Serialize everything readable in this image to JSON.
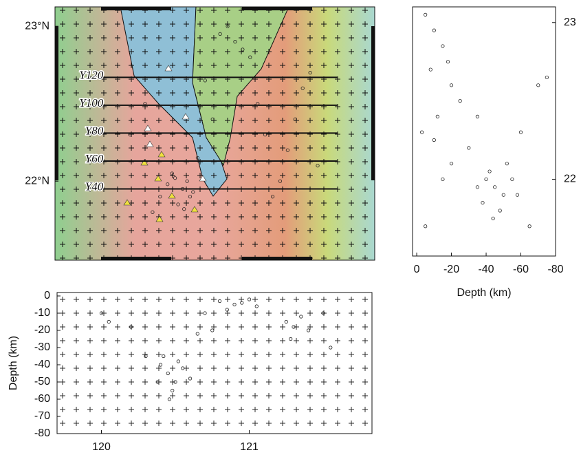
{
  "chart_data": [
    {
      "type": "map",
      "xlim": [
        119.7,
        121.83
      ],
      "ylim": [
        21.49,
        23.125
      ],
      "yticks": [
        {
          "value": 23,
          "label": "23°N"
        },
        {
          "value": 22,
          "label": "22°N"
        }
      ],
      "profiles": [
        {
          "label": "Y120",
          "lat": 22.67
        },
        {
          "label": "Y100",
          "lat": 22.49
        },
        {
          "label": "Y80",
          "lat": 22.31
        },
        {
          "label": "Y60",
          "lat": 22.13
        },
        {
          "label": "Y40",
          "lat": 21.95
        }
      ],
      "profile_lon": [
        119.93,
        121.58
      ],
      "x": [
        120.45,
        120.5,
        120.55,
        120.6,
        120.52,
        120.48,
        120.58,
        120.62,
        120.4,
        120.56,
        120.9,
        120.95,
        120.85,
        120.8,
        121.0,
        121.05,
        121.1,
        121.3,
        121.35,
        121.25,
        121.4,
        121.45,
        120.2,
        120.3,
        120.7,
        120.75,
        121.15,
        121.2,
        120.65,
        120.35
      ],
      "y": [
        21.98,
        22.02,
        21.95,
        21.9,
        21.85,
        22.05,
        22.0,
        21.93,
        21.9,
        21.82,
        22.9,
        22.85,
        23.0,
        22.95,
        22.8,
        22.5,
        22.3,
        22.4,
        22.6,
        22.2,
        22.7,
        22.1,
        22.3,
        22.5,
        22.65,
        22.4,
        21.9,
        22.0,
        22.15,
        21.8
      ]
    },
    {
      "type": "scatter",
      "xlim": [
        2.4,
        -80
      ],
      "ylim": [
        21.51,
        23.1
      ],
      "xticks": [
        0,
        -20,
        -40,
        -60,
        -80
      ],
      "yticks": [
        22,
        23
      ],
      "xlabel": "Depth (km)",
      "x": [
        -5,
        -10,
        -15,
        -8,
        -20,
        -12,
        -3,
        -25,
        -10,
        -18,
        -40,
        -45,
        -50,
        -42,
        -38,
        -48,
        -55,
        -35,
        -44,
        -52,
        -30,
        -60,
        -70,
        -65,
        -20,
        -5,
        -15,
        -35,
        -75,
        -58
      ],
      "y": [
        23.05,
        22.95,
        22.85,
        22.7,
        22.6,
        22.4,
        22.3,
        22.5,
        22.25,
        22.75,
        22.0,
        21.95,
        21.9,
        22.05,
        21.85,
        21.8,
        22.0,
        21.95,
        21.75,
        22.1,
        22.2,
        22.3,
        22.6,
        21.7,
        22.1,
        21.7,
        22.0,
        22.4,
        22.65,
        21.9
      ]
    },
    {
      "type": "scatter",
      "xlim": [
        119.7,
        121.83
      ],
      "ylim": [
        -80,
        2
      ],
      "xticks": [
        120,
        121
      ],
      "yticks": [
        0,
        -10,
        -20,
        -30,
        -40,
        -50,
        -60,
        -70,
        -80
      ],
      "ylabel": "Depth (km)",
      "x": [
        120.4,
        120.45,
        120.5,
        120.55,
        120.42,
        120.48,
        120.6,
        120.38,
        120.52,
        120.46,
        120.8,
        120.9,
        121.0,
        120.85,
        120.95,
        121.05,
        120.75,
        121.25,
        121.3,
        121.35,
        121.28,
        121.4,
        120.0,
        120.05,
        120.2,
        120.65,
        120.7,
        121.5,
        121.55,
        120.3
      ],
      "y": [
        -40,
        -45,
        -50,
        -42,
        -35,
        -55,
        -48,
        -50,
        -38,
        -60,
        -3,
        -5,
        -2,
        -8,
        -4,
        -6,
        -20,
        -15,
        -18,
        -12,
        -25,
        -20,
        -10,
        -15,
        -18,
        -22,
        -10,
        -10,
        -30,
        -35
      ]
    }
  ]
}
